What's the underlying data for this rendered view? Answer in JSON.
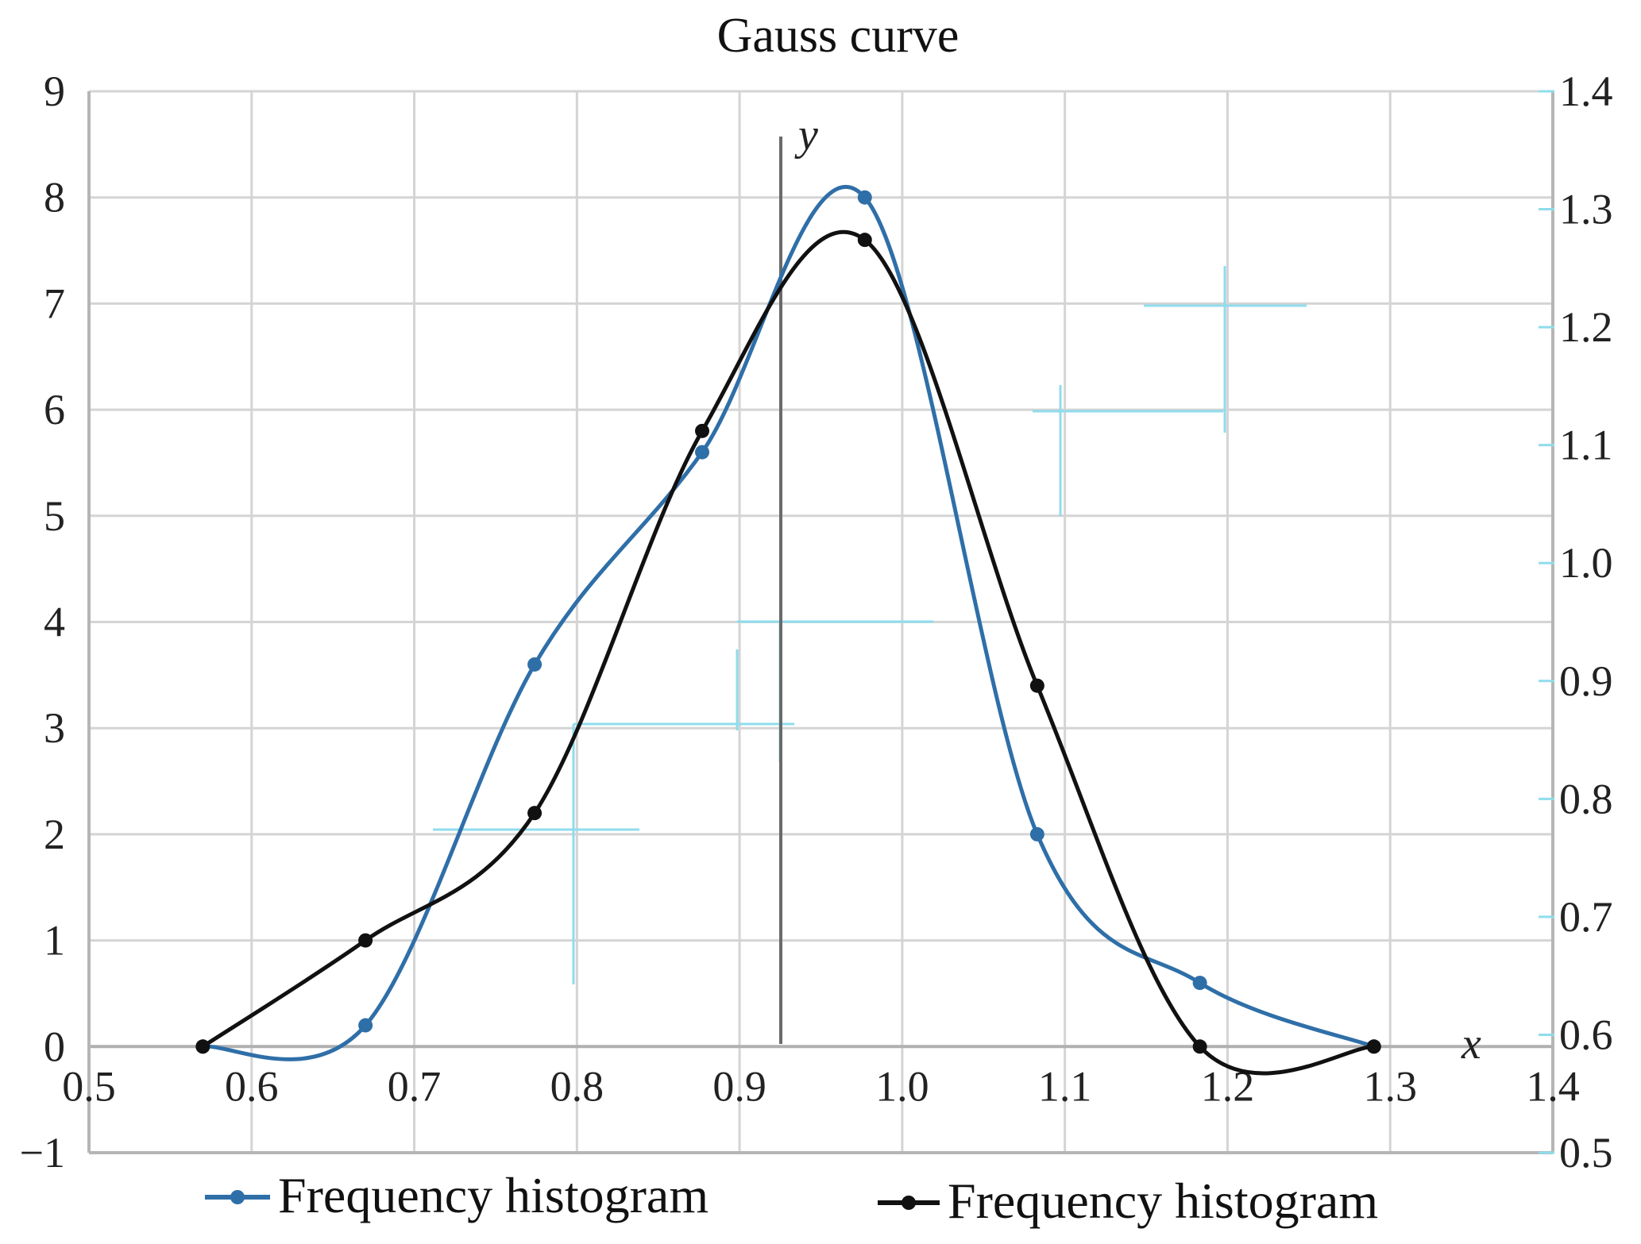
{
  "chart_data": {
    "type": "line",
    "title": "Gauss curve",
    "xlabel": "x",
    "ylabel": "y",
    "xlim": [
      0.5,
      1.4
    ],
    "ylim": [
      -1,
      9
    ],
    "y2lim": [
      0.5,
      1.4
    ],
    "grid": true,
    "x_ticks": [
      "0.5",
      "0.6",
      "0.7",
      "0.8",
      "0.9",
      "1.0",
      "1.1",
      "1.2",
      "1.3",
      "1.4"
    ],
    "y_ticks": [
      "−1",
      "0",
      "1",
      "2",
      "3",
      "4",
      "5",
      "6",
      "7",
      "8",
      "9"
    ],
    "y2_ticks": [
      "0.5",
      "0.6",
      "0.7",
      "0.8",
      "0.9",
      "1.0",
      "1.1",
      "1.2",
      "1.3",
      "1.4"
    ],
    "legend_position": "bottom",
    "series": [
      {
        "name": "Frequency histogram",
        "color": "#2f6fa8",
        "marker": "circle",
        "smooth": true,
        "x": [
          0.57,
          0.67,
          0.774,
          0.877,
          0.977,
          1.083,
          1.183,
          1.29
        ],
        "y": [
          0,
          0.2,
          3.6,
          5.6,
          8.0,
          2.0,
          0.6,
          0
        ]
      },
      {
        "name": "Frequency histogram",
        "color": "#111111",
        "marker": "circle",
        "smooth": true,
        "x": [
          0.57,
          0.67,
          0.774,
          0.877,
          0.977,
          1.083,
          1.183,
          1.29
        ],
        "y": [
          0,
          1.0,
          2.2,
          5.8,
          7.6,
          3.4,
          0,
          0
        ]
      }
    ]
  }
}
